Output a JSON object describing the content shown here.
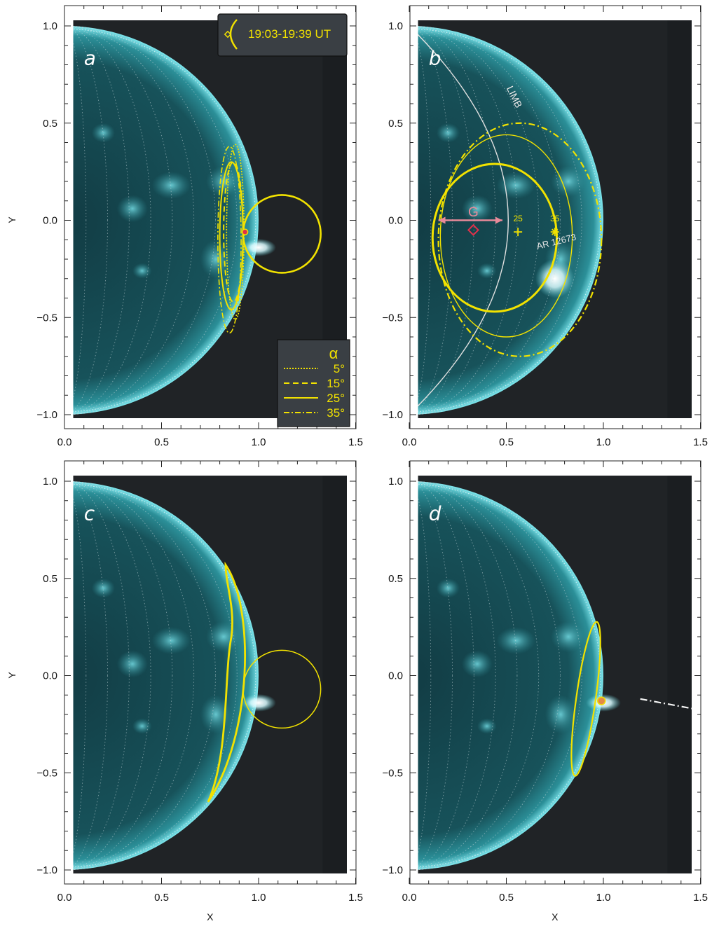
{
  "figure": {
    "x_axis_label": "X",
    "y_axis_label": "Y",
    "x_ticks": [
      "0.0",
      "0.5",
      "1.0",
      "1.5"
    ],
    "y_ticks": [
      "1.0",
      "0.5",
      "0.0",
      "−0.5",
      "−1.0"
    ],
    "x_range": [
      0.0,
      1.5
    ],
    "y_range": [
      -1.0,
      1.0
    ],
    "colors": {
      "sun_disk": "#1d6f78",
      "sun_limb": "#6fe3ea",
      "background": "#202326",
      "contour": "#f2e200",
      "limb_line": "#e0e0e0",
      "g_arrow": "#e98a9a",
      "flare": "#ffffff"
    }
  },
  "panels": [
    {
      "id": "a",
      "label": "a",
      "time_legend": {
        "icon": "bow-icon",
        "text": "19:03-19:39 UT"
      },
      "alpha_legend": {
        "title": "α",
        "entries": [
          {
            "style": "dotted",
            "label": "5°"
          },
          {
            "style": "dashed",
            "label": "15°"
          },
          {
            "style": "solid",
            "label": "25°"
          },
          {
            "style": "dash-dot",
            "label": "35°"
          }
        ]
      }
    },
    {
      "id": "b",
      "label": "b",
      "limb_label": "LIMB",
      "g_label": "G",
      "alpha_marks": [
        "25",
        "35"
      ],
      "region_label": "AR 12673"
    },
    {
      "id": "c",
      "label": "c"
    },
    {
      "id": "d",
      "label": "d"
    }
  ]
}
